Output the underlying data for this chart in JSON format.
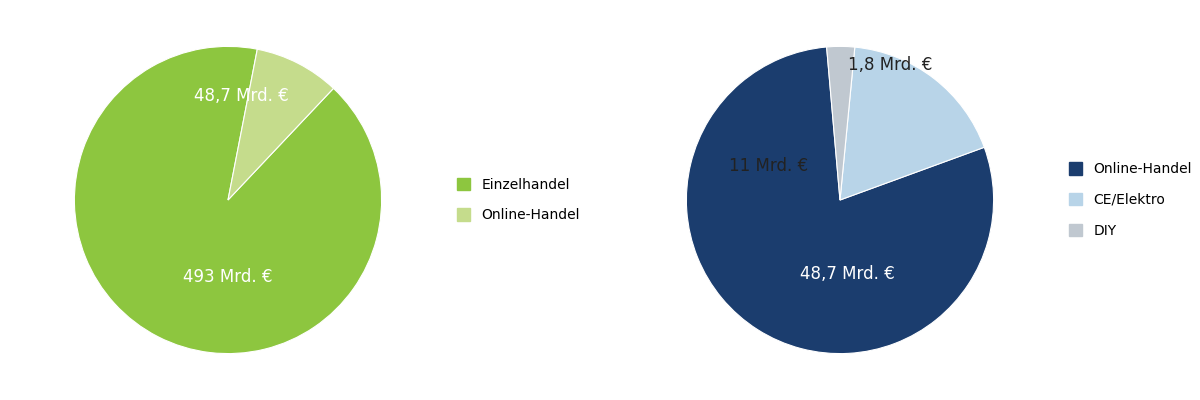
{
  "pie1": {
    "values": [
      493,
      48.7
    ],
    "colors": [
      "#8dc63f",
      "#c5dc8c"
    ],
    "labels": [
      "Einzelhandel",
      "Online-Handel"
    ],
    "text_labels": [
      "493 Mrd. €",
      "48,7 Mrd. €"
    ],
    "text_colors": [
      "white",
      "white"
    ],
    "startangle": 79
  },
  "pie2": {
    "values": [
      48.7,
      11,
      1.8
    ],
    "colors": [
      "#1b3d6e",
      "#b8d4e8",
      "#c0c8d0"
    ],
    "labels": [
      "Online-Handel",
      "CE/Elektro",
      "DIY"
    ],
    "text_labels": [
      "48,7 Mrd. €",
      "11 Mrd. €",
      "1,8 Mrd. €"
    ],
    "text_colors": [
      "white",
      "#222222",
      "#222222"
    ],
    "startangle": 95
  },
  "legend1_colors": [
    "#8dc63f",
    "#c5dc8c"
  ],
  "legend1_labels": [
    "Einzelhandel",
    "Online-Handel"
  ],
  "legend2_colors": [
    "#1b3d6e",
    "#b8d4e8",
    "#c0c8d0"
  ],
  "legend2_labels": [
    "Online-Handel",
    "CE/Elektro",
    "DIY"
  ],
  "fontsize_labels": 12,
  "fontsize_legend": 10
}
